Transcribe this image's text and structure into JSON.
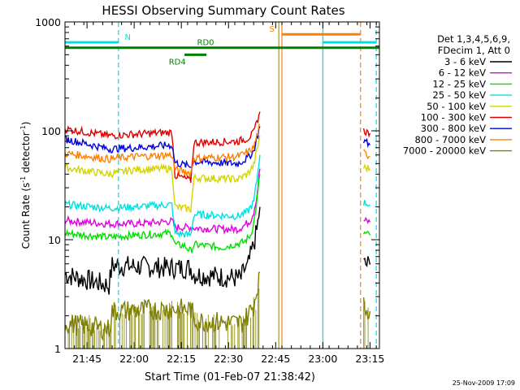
{
  "chart_data": {
    "type": "line",
    "title": "HESSI Observing Summary Count Rates",
    "xlabel": "Start Time (01-Feb-07 21:38:42)",
    "ylabel_main": "Count Rate (s",
    "ylabel_sup1": "-1",
    "ylabel_mid": " detector",
    "ylabel_sup2": "-1",
    "ylabel_end": ")",
    "y_scale": "log",
    "ylim": [
      1,
      1000
    ],
    "xlim_min": [
      0,
      100
    ],
    "x_ticks": [
      {
        "min": 7,
        "label": "21:45"
      },
      {
        "min": 22,
        "label": "22:00"
      },
      {
        "min": 37,
        "label": "22:15"
      },
      {
        "min": 52,
        "label": "22:30"
      },
      {
        "min": 67,
        "label": "22:45"
      },
      {
        "min": 82,
        "label": "23:00"
      },
      {
        "min": 97,
        "label": "23:15"
      }
    ],
    "y_ticks": [
      {
        "value": 1,
        "label": "1"
      },
      {
        "value": 10,
        "label": "10"
      },
      {
        "value": 100,
        "label": "100"
      },
      {
        "value": 1000,
        "label": "1000"
      }
    ],
    "legend": {
      "header_1": "Det 1,3,4,5,6,9,",
      "header_2": "FDecim 1, Att 0"
    },
    "series": [
      {
        "name": "3 - 6 keV",
        "color": "#000000",
        "segments": [
          [
            [
              0,
              4.8
            ],
            [
              14,
              3.8
            ],
            [
              15,
              5.8
            ],
            [
              34,
              5.5
            ],
            [
              40,
              5.5
            ],
            [
              41,
              4.8
            ],
            [
              56,
              4.4
            ],
            [
              57,
              5.3
            ],
            [
              58,
              5.5
            ],
            [
              59,
              7
            ],
            [
              60,
              9
            ],
            [
              61,
              12
            ],
            [
              62,
              20
            ]
          ],
          [
            [
              95,
              5.9
            ],
            [
              97,
              5.9
            ]
          ]
        ]
      },
      {
        "name": "6 - 12 keV",
        "color": "#e000e0",
        "segments": [
          [
            [
              0,
              15
            ],
            [
              6,
              14.5
            ],
            [
              14,
              14
            ],
            [
              22,
              14
            ],
            [
              26,
              14.2
            ],
            [
              34,
              14.8
            ],
            [
              35,
              13
            ],
            [
              40,
              13
            ],
            [
              41,
              12.8
            ],
            [
              50,
              12.5
            ],
            [
              55,
              12.5
            ],
            [
              57,
              13.5
            ],
            [
              59,
              15
            ],
            [
              60,
              18
            ],
            [
              61,
              25
            ],
            [
              62,
              45
            ]
          ],
          [
            [
              95,
              15
            ],
            [
              97,
              14.5
            ]
          ]
        ]
      },
      {
        "name": "12 - 25 keV",
        "color": "#00e000",
        "segments": [
          [
            [
              0,
              11.5
            ],
            [
              14,
              10.5
            ],
            [
              22,
              11
            ],
            [
              34,
              11.5
            ],
            [
              35,
              9
            ],
            [
              38,
              8.8
            ],
            [
              40,
              7.8
            ],
            [
              41,
              9
            ],
            [
              50,
              8.5
            ],
            [
              57,
              9.5
            ],
            [
              59,
              11
            ],
            [
              60,
              14
            ],
            [
              61,
              22
            ],
            [
              62,
              40
            ]
          ],
          [
            [
              95,
              11.5
            ],
            [
              97,
              11
            ]
          ]
        ]
      },
      {
        "name": "25 - 50 keV",
        "color": "#00e0e0",
        "segments": [
          [
            [
              0,
              21
            ],
            [
              14,
              19.5
            ],
            [
              22,
              20
            ],
            [
              34,
              21
            ],
            [
              35,
              11.5
            ],
            [
              40,
              11
            ],
            [
              41,
              17
            ],
            [
              55,
              16.5
            ],
            [
              58,
              18
            ],
            [
              60,
              22
            ],
            [
              61,
              35
            ],
            [
              62,
              60
            ]
          ],
          [
            [
              95,
              22
            ],
            [
              97,
              21
            ]
          ]
        ]
      },
      {
        "name": "50 - 100 keV",
        "color": "#d4d400",
        "segments": [
          [
            [
              0,
              46
            ],
            [
              6,
              43
            ],
            [
              14,
              40
            ],
            [
              22,
              44
            ],
            [
              34,
              45
            ],
            [
              35,
              20
            ],
            [
              40,
              19
            ],
            [
              41,
              37
            ],
            [
              55,
              36
            ],
            [
              58,
              40
            ],
            [
              60,
              48
            ],
            [
              61,
              65
            ],
            [
              62,
              90
            ]
          ],
          [
            [
              95,
              46
            ],
            [
              97,
              45
            ]
          ]
        ]
      },
      {
        "name": "100 - 300 keV",
        "color": "#e00000",
        "segments": [
          [
            [
              0,
              104
            ],
            [
              6,
              98
            ],
            [
              14,
              90
            ],
            [
              22,
              93
            ],
            [
              34,
              97
            ],
            [
              35,
              39
            ],
            [
              40,
              35
            ],
            [
              41,
              78
            ],
            [
              55,
              80
            ],
            [
              58,
              85
            ],
            [
              60,
              95
            ],
            [
              61,
              120
            ],
            [
              62,
              150
            ]
          ],
          [
            [
              95,
              100
            ],
            [
              97,
              95
            ]
          ]
        ]
      },
      {
        "name": "300 - 800 keV",
        "color": "#0000e0",
        "segments": [
          [
            [
              0,
              84
            ],
            [
              6,
              77
            ],
            [
              14,
              68
            ],
            [
              22,
              70
            ],
            [
              34,
              74
            ],
            [
              35,
              51
            ],
            [
              40,
              47
            ],
            [
              41,
              52
            ],
            [
              55,
              50
            ],
            [
              58,
              56
            ],
            [
              60,
              65
            ],
            [
              61,
              85
            ],
            [
              62,
              110
            ]
          ],
          [
            [
              95,
              82
            ],
            [
              97,
              74
            ]
          ]
        ]
      },
      {
        "name": "800 - 7000 keV",
        "color": "#ff8000",
        "segments": [
          [
            [
              0,
              62
            ],
            [
              6,
              59
            ],
            [
              14,
              55
            ],
            [
              22,
              58
            ],
            [
              34,
              60
            ],
            [
              35,
              44
            ],
            [
              40,
              41
            ],
            [
              41,
              56
            ],
            [
              55,
              58
            ],
            [
              58,
              63
            ],
            [
              60,
              70
            ],
            [
              61,
              90
            ],
            [
              62,
              115
            ]
          ],
          [
            [
              95,
              63
            ],
            [
              97,
              58
            ]
          ]
        ]
      },
      {
        "name": "7000 - 20000 keV",
        "color": "#808000",
        "segments": [
          [
            [
              0,
              1.7
            ],
            [
              8,
              1.6
            ],
            [
              14,
              1.5
            ],
            [
              15,
              2.2
            ],
            [
              34,
              2.3
            ],
            [
              40,
              2.3
            ],
            [
              41,
              1.8
            ],
            [
              56,
              1.7
            ],
            [
              58,
              2
            ],
            [
              60,
              2.5
            ],
            [
              61,
              3.5
            ],
            [
              62,
              5
            ]
          ],
          [
            [
              95,
              2.4
            ],
            [
              97,
              2.2
            ]
          ]
        ]
      }
    ],
    "attenuator_bars": [
      {
        "label": "N",
        "color": "#00e0e0",
        "y": 650,
        "x0": 0,
        "x1": 17,
        "label_at": 19
      },
      {
        "label": "RD0",
        "color": "#008000",
        "y": 580,
        "x0": 0,
        "x1": 100,
        "label_at": 42
      },
      {
        "label": "RD4",
        "color": "#008000",
        "y": 500,
        "x0": 38,
        "x1": 45,
        "label_at": 33
      },
      {
        "label": "S",
        "color": "#ff8000",
        "y": 770,
        "x0": 69,
        "x1": 94,
        "label_at": 65
      },
      {
        "label": "",
        "color": "#00e0e0",
        "y": 650,
        "x0": 82,
        "x1": 99,
        "label_at": 0
      }
    ],
    "vlines": [
      {
        "x": 17,
        "color": "#00e0e0",
        "dashed": true
      },
      {
        "x": 68,
        "color": "#a0a000",
        "dashed": false
      },
      {
        "x": 69,
        "color": "#ff8000",
        "dashed": false
      },
      {
        "x": 82,
        "color": "#00e0e0",
        "dashed": false
      },
      {
        "x": 94,
        "color": "#ff8000",
        "dashed": true
      },
      {
        "x": 99,
        "color": "#00e0e0",
        "dashed": true
      }
    ]
  },
  "footer": {
    "timestamp": "25-Nov-2009 17:09"
  }
}
